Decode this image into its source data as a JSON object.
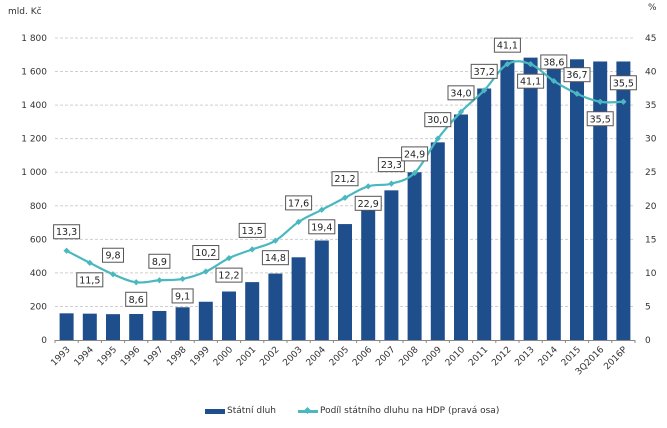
{
  "chart_data": {
    "type": "bar+line",
    "title": "",
    "left_axis": {
      "label": "mld. Kč",
      "ylim": [
        0,
        1800
      ],
      "ticks": [
        "0",
        "200",
        "400",
        "600",
        "800",
        "1 000",
        "1 200",
        "1 400",
        "1 600",
        "1 800"
      ],
      "tick_values": [
        0,
        200,
        400,
        600,
        800,
        1000,
        1200,
        1400,
        1600,
        1800
      ]
    },
    "right_axis": {
      "label": "%",
      "ylim": [
        0,
        45
      ],
      "ticks": [
        "0",
        "5",
        "10",
        "15",
        "20",
        "25",
        "30",
        "35",
        "40",
        "45"
      ],
      "tick_values": [
        0,
        5,
        10,
        15,
        20,
        25,
        30,
        35,
        40,
        45
      ]
    },
    "categories": [
      "1993",
      "1994",
      "1995",
      "1996",
      "1997",
      "1998",
      "1999",
      "2000",
      "2001",
      "2002",
      "2003",
      "2004",
      "2005",
      "2006",
      "2007",
      "2008",
      "2009",
      "2010",
      "2011",
      "2012",
      "2013",
      "2014",
      "2015",
      "3Q2016",
      "2016P"
    ],
    "grid": true,
    "legend_position": "bottom",
    "series": [
      {
        "name": "Státní dluh",
        "type": "bar",
        "axis": "left",
        "color": "#1f4e8c",
        "values": [
          159,
          157,
          154,
          155,
          173,
          195,
          228,
          289,
          345,
          396,
          493,
          593,
          691,
          802,
          892,
          1000,
          1178,
          1344,
          1499,
          1668,
          1683,
          1664,
          1673,
          1660,
          1660
        ]
      },
      {
        "name": "Podíl státního dluhu na HDP (pravá osa)",
        "type": "line",
        "axis": "right",
        "color": "#4bb8c0",
        "values": [
          13.3,
          11.5,
          9.8,
          8.6,
          8.9,
          9.1,
          10.2,
          12.2,
          13.5,
          14.8,
          17.6,
          19.4,
          21.2,
          22.9,
          23.3,
          24.9,
          30.0,
          34.0,
          37.2,
          41.1,
          41.1,
          38.6,
          36.7,
          35.5,
          35.5
        ],
        "labels": [
          "13,3",
          "11,5",
          "9,8",
          "8,6",
          "8,9",
          "9,1",
          "10,2",
          "12,2",
          "13,5",
          "14,8",
          "17,6",
          "19,4",
          "21,2",
          "22,9",
          "23,3",
          "24,9",
          "30,0",
          "34,0",
          "37,2",
          "41,1",
          "41,1",
          "38,6",
          "36,7",
          "35,5",
          "35,5"
        ],
        "label_side": [
          "above",
          "below",
          "above",
          "below",
          "above",
          "below",
          "above",
          "below",
          "above",
          "below",
          "above",
          "below",
          "above",
          "below",
          "above",
          "above",
          "above",
          "above",
          "above",
          "above",
          "below",
          "above",
          "above",
          "below",
          "above"
        ]
      }
    ]
  },
  "legend": {
    "bar_label": "Státní dluh",
    "line_label": "Podíl státního dluhu na HDP (pravá osa)"
  }
}
